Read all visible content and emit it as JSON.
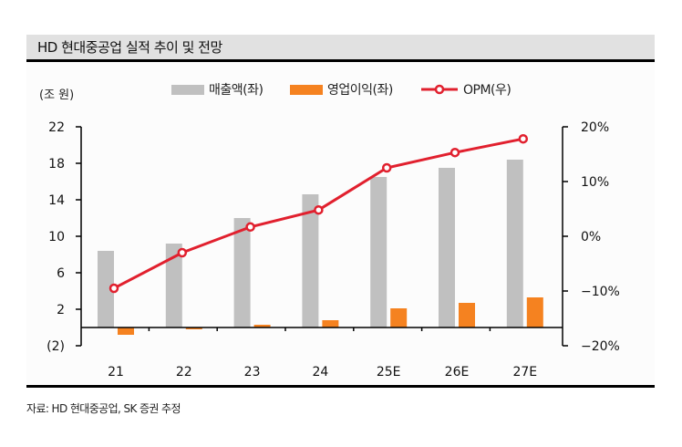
{
  "title": "HD 현대중공업 실적 추이 및 전망",
  "unit_label": "(조 원)",
  "source": "자료: HD 현대중공업, SK 증권 추정",
  "colors": {
    "revenue": "#c0c0c0",
    "operating_profit": "#f58220",
    "opm": "#e1202e",
    "title_bg": "#e1e1e1"
  },
  "chart_data": {
    "type": "bar+line",
    "title": "HD 현대중공업 실적 추이 및 전망",
    "categories": [
      "21",
      "22",
      "23",
      "24",
      "25E",
      "26E",
      "27E"
    ],
    "series": [
      {
        "name": "매출액(좌)",
        "axis": "left",
        "type": "bar",
        "values": [
          8.4,
          9.2,
          12.0,
          14.6,
          16.5,
          17.5,
          18.4
        ]
      },
      {
        "name": "영업이익(좌)",
        "axis": "left",
        "type": "bar",
        "values": [
          -0.8,
          -0.2,
          0.3,
          0.8,
          2.1,
          2.7,
          3.3
        ]
      },
      {
        "name": "OPM(우)",
        "axis": "right",
        "type": "line",
        "values": [
          -9.5,
          -3.0,
          1.7,
          4.8,
          12.5,
          15.3,
          17.8
        ]
      }
    ],
    "left_axis": {
      "label": "(조 원)",
      "ylim": [
        -2,
        22
      ],
      "ticks": [
        22,
        18,
        14,
        10,
        6,
        2,
        -2
      ],
      "tick_labels": [
        "22",
        "18",
        "14",
        "10",
        "6",
        "2",
        "(2)"
      ]
    },
    "right_axis": {
      "ylim": [
        -20,
        20
      ],
      "ticks": [
        20,
        10,
        0,
        -10,
        -20
      ],
      "tick_labels": [
        "20%",
        "10%",
        "0%",
        "−10%",
        "−20%"
      ]
    },
    "legend": [
      "매출액(좌)",
      "영업이익(좌)",
      "OPM(우)"
    ],
    "legend_position": "top",
    "grid": false
  }
}
